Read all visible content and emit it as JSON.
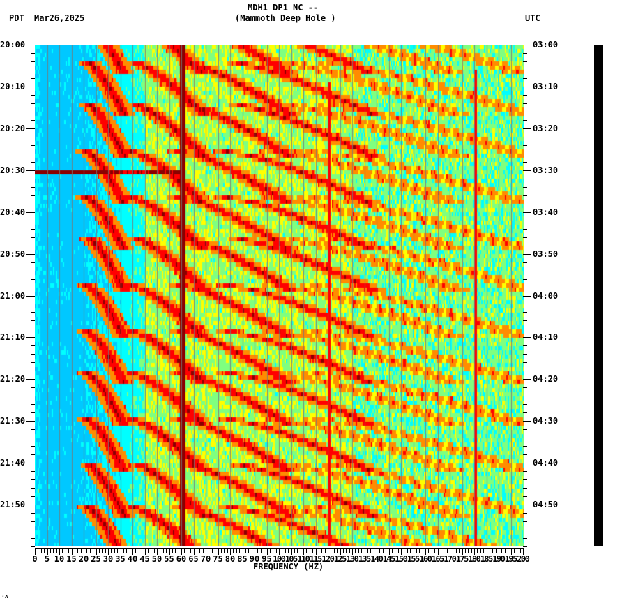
{
  "header": {
    "station_line": "MDH1 DP1 NC --",
    "station_name": "(Mammoth Deep Hole )",
    "left_timezone": "PDT",
    "date": "Mar26,2025",
    "right_timezone": "UTC"
  },
  "footer_mark": "·ʌ",
  "chart_data": {
    "type": "heatmap",
    "title": "MDH1 DP1 NC -- (Mammoth Deep Hole )",
    "subtitle": "PDT Mar26,2025 / UTC",
    "xlabel": "FREQUENCY (HZ)",
    "ylabel_left": "PDT",
    "ylabel_right": "UTC",
    "xlim": [
      0,
      200
    ],
    "x_ticks": [
      "0",
      "5",
      "10",
      "15",
      "20",
      "25",
      "30",
      "35",
      "40",
      "45",
      "50",
      "55",
      "60",
      "65",
      "70",
      "75",
      "80",
      "85",
      "90",
      "95",
      "100",
      "105",
      "110",
      "115",
      "120",
      "125",
      "130",
      "135",
      "140",
      "145",
      "150",
      "155",
      "160",
      "165",
      "170",
      "175",
      "180",
      "185",
      "190",
      "195",
      "200"
    ],
    "y_ticks_left": [
      "20:00",
      "20:10",
      "20:20",
      "20:30",
      "20:40",
      "20:50",
      "21:00",
      "21:10",
      "21:20",
      "21:30",
      "21:40",
      "21:50"
    ],
    "y_ticks_right": [
      "03:00",
      "03:10",
      "03:20",
      "03:30",
      "03:40",
      "03:50",
      "04:00",
      "04:10",
      "04:20",
      "04:30",
      "04:40",
      "04:50"
    ],
    "time_range_minutes": 120,
    "colormap": [
      "#0000c8",
      "#0064ff",
      "#00c8ff",
      "#00ffff",
      "#7fff7f",
      "#ffff00",
      "#ff8c00",
      "#ff0000",
      "#8b0000"
    ],
    "features": {
      "persistent_line_hz": 60,
      "secondary_lines_hz": [
        120,
        180
      ],
      "broadband_event_time": "20:30",
      "gliding_harmonics": "repeating ~12-minute arcs rising from ~20-45 Hz toward higher frequency",
      "low_freq_band_hz": [
        0,
        25
      ],
      "low_freq_level": "low (blue)",
      "high_freq_level": "moderate (cyan/green/yellow)"
    },
    "grid": true
  },
  "seismogram": {
    "label": "seismogram trace",
    "marker_time": "20:30"
  }
}
